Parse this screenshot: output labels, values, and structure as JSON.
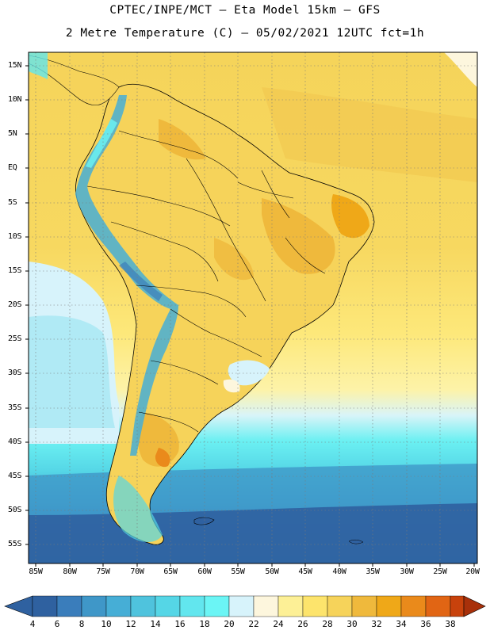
{
  "header": {
    "line1": "CPTEC/INPE/MCT –  Eta Model 15km – GFS",
    "line2": "2 Metre Temperature (C) – 05/02/2021 12UTC fct=1h"
  },
  "map": {
    "lat_labels": [
      "15N",
      "10N",
      "5N",
      "EQ",
      "5S",
      "10S",
      "15S",
      "20S",
      "25S",
      "30S",
      "35S",
      "40S",
      "45S",
      "50S",
      "55S"
    ],
    "lon_labels": [
      "85W",
      "80W",
      "75W",
      "70W",
      "65W",
      "60W",
      "55W",
      "50W",
      "45W",
      "40W",
      "35W",
      "30W",
      "25W",
      "20W"
    ]
  },
  "colorbar": {
    "labels": [
      "4",
      "6",
      "8",
      "10",
      "12",
      "14",
      "16",
      "18",
      "20",
      "22",
      "24",
      "26",
      "28",
      "30",
      "32",
      "34",
      "36",
      "38"
    ],
    "colors": [
      "#2f61a0",
      "#3a7dbb",
      "#3f97c8",
      "#46aed6",
      "#4fc3dd",
      "#55d6e6",
      "#62e6ee",
      "#6bf5f5",
      "#d7f3fb",
      "#fdf6dd",
      "#fdf096",
      "#fde46c",
      "#f6d35a",
      "#efb93c",
      "#efa818",
      "#ea8a1b",
      "#e16514",
      "#c8420c",
      "#a8300a"
    ]
  }
}
